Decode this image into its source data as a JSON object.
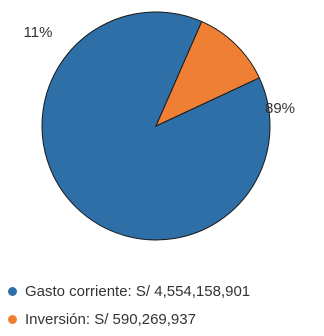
{
  "chart_data": {
    "type": "pie",
    "slices": [
      {
        "label": "Gasto corriente: S/ 4,554,158,901",
        "value": 4554158901,
        "percent_label": "89%",
        "color": "#2E6FA7"
      },
      {
        "label": "Inversión: S/ 590,269,937",
        "value": 590269937,
        "percent_label": "11%",
        "color": "#EF7F34"
      }
    ],
    "legend_position": "bottom-left",
    "slice_border_color": "#1a1a1a"
  }
}
